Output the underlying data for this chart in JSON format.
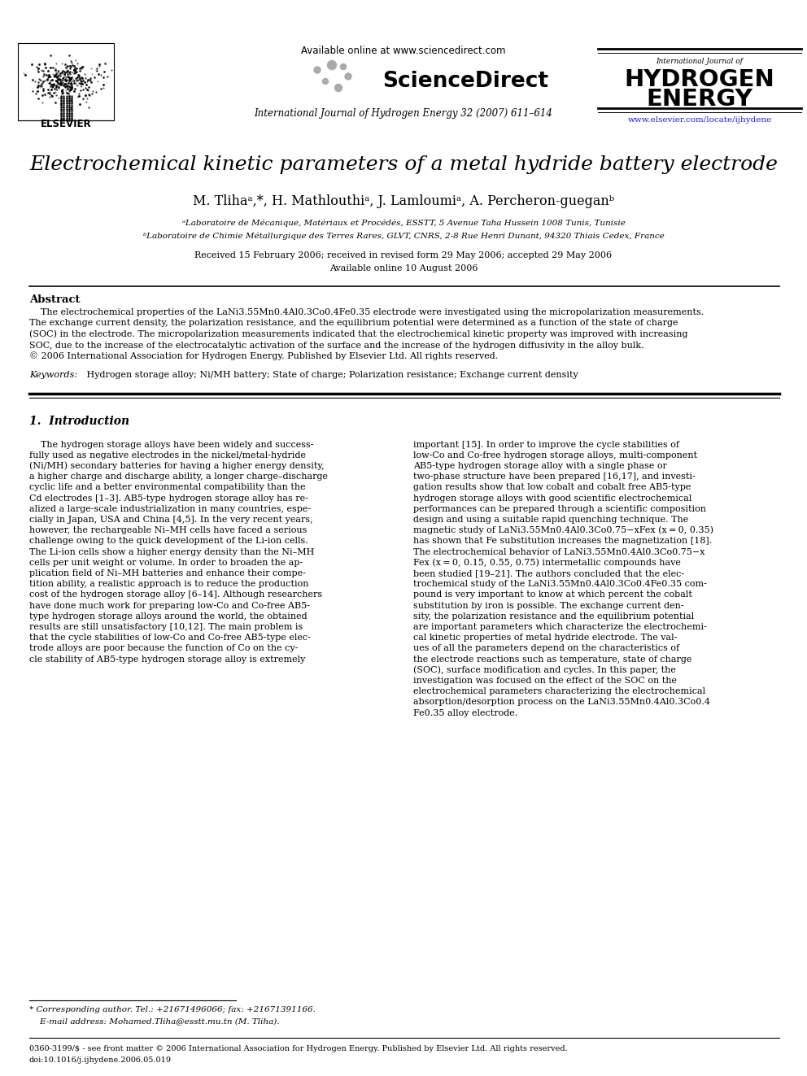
{
  "bg_color": "#ffffff",
  "title": "Electrochemical kinetic parameters of a metal hydride battery electrode",
  "authors": "M. Tlihaᵃ,*, H. Mathlouthiᵃ, J. Lamloumiᵃ, A. Percheron-gueganᵇ",
  "affil_a": "ᵃLaboratoire de Mécanique, Matériaux et Procédés, ESSTT, 5 Avenue Taha Hussein 1008 Tunis, Tunisie",
  "affil_b": "ᵇLaboratoire de Chimie Métallurgique des Terres Rares, GLVT, CNRS, 2-8 Rue Henri Dunant, 94320 Thiais Cedex, France",
  "received": "Received 15 February 2006; received in revised form 29 May 2006; accepted 29 May 2006",
  "available": "Available online 10 August 2006",
  "header_available": "Available online at www.sciencedirect.com",
  "journal_line": "International Journal of Hydrogen Energy 32 (2007) 611–614",
  "url": "www.elsevier.com/locate/ijhydene",
  "elsevier": "ELSEVIER",
  "sd_label": "ScienceDirect",
  "h2_intl": "International Journal of",
  "h2_line1": "HYDROGEN",
  "h2_line2": "ENERGY",
  "abstract_title": "Abstract",
  "keywords_label": "Keywords:",
  "keywords_text": " Hydrogen storage alloy; Ni/MH battery; State of charge; Polarization resistance; Exchange current density",
  "section1_title": "1.  Introduction",
  "footnote1": "* Corresponding author. Tel.: +21671496066; fax: +21671391166.",
  "footnote2": "    E-mail address: Mohamed.Tliha@esstt.mu.tn (M. Tliha).",
  "footer1": "0360-3199/$ - see front matter © 2006 International Association for Hydrogen Energy. Published by Elsevier Ltd. All rights reserved.",
  "footer2": "doi:10.1016/j.ijhydene.2006.05.019",
  "abstract_lines": [
    "    The electrochemical properties of the LaNi3.55Mn0.4Al0.3Co0.4Fe0.35 electrode were investigated using the micropolarization measurements.",
    "The exchange current density, the polarization resistance, and the equilibrium potential were determined as a function of the state of charge",
    "(SOC) in the electrode. The micropolarization measurements indicated that the electrochemical kinetic property was improved with increasing",
    "SOC, due to the increase of the electrocatalytic activation of the surface and the increase of the hydrogen diffusivity in the alloy bulk.",
    "© 2006 International Association for Hydrogen Energy. Published by Elsevier Ltd. All rights reserved."
  ],
  "col1_lines": [
    "    The hydrogen storage alloys have been widely and success-",
    "fully used as negative electrodes in the nickel/metal-hydride",
    "(Ni/MH) secondary batteries for having a higher energy density,",
    "a higher charge and discharge ability, a longer charge–discharge",
    "cyclic life and a better environmental compatibility than the",
    "Cd electrodes [1–3]. AB5-type hydrogen storage alloy has re-",
    "alized a large-scale industrialization in many countries, espe-",
    "cially in Japan, USA and China [4,5]. In the very recent years,",
    "however, the rechargeable Ni–MH cells have faced a serious",
    "challenge owing to the quick development of the Li-ion cells.",
    "The Li-ion cells show a higher energy density than the Ni–MH",
    "cells per unit weight or volume. In order to broaden the ap-",
    "plication field of Ni–MH batteries and enhance their compe-",
    "tition ability, a realistic approach is to reduce the production",
    "cost of the hydrogen storage alloy [6–14]. Although researchers",
    "have done much work for preparing low-Co and Co-free AB5-",
    "type hydrogen storage alloys around the world, the obtained",
    "results are still unsatisfactory [10,12]. The main problem is",
    "that the cycle stabilities of low-Co and Co-free AB5-type elec-",
    "trode alloys are poor because the function of Co on the cy-",
    "cle stability of AB5-type hydrogen storage alloy is extremely"
  ],
  "col2_lines": [
    "important [15]. In order to improve the cycle stabilities of",
    "low-Co and Co-free hydrogen storage alloys, multi-component",
    "AB5-type hydrogen storage alloy with a single phase or",
    "two-phase structure have been prepared [16,17], and investi-",
    "gation results show that low cobalt and cobalt free AB5-type",
    "hydrogen storage alloys with good scientific electrochemical",
    "performances can be prepared through a scientific composition",
    "design and using a suitable rapid quenching technique. The",
    "magnetic study of LaNi3.55Mn0.4Al0.3Co0.75−xFex (x = 0, 0.35)",
    "has shown that Fe substitution increases the magnetization [18].",
    "The electrochemical behavior of LaNi3.55Mn0.4Al0.3Co0.75−x",
    "Fex (x = 0, 0.15, 0.55, 0.75) intermetallic compounds have",
    "been studied [19–21]. The authors concluded that the elec-",
    "trochemical study of the LaNi3.55Mn0.4Al0.3Co0.4Fe0.35 com-",
    "pound is very important to know at which percent the cobalt",
    "substitution by iron is possible. The exchange current den-",
    "sity, the polarization resistance and the equilibrium potential",
    "are important parameters which characterize the electrochemi-",
    "cal kinetic properties of metal hydride electrode. The val-",
    "ues of all the parameters depend on the characteristics of",
    "the electrode reactions such as temperature, state of charge",
    "(SOC), surface modification and cycles. In this paper, the",
    "investigation was focused on the effect of the SOC on the",
    "electrochemical parameters characterizing the electrochemical",
    "absorption/desorption process on the LaNi3.55Mn0.4Al0.3Co0.4",
    "Fe0.35 alloy electrode."
  ]
}
